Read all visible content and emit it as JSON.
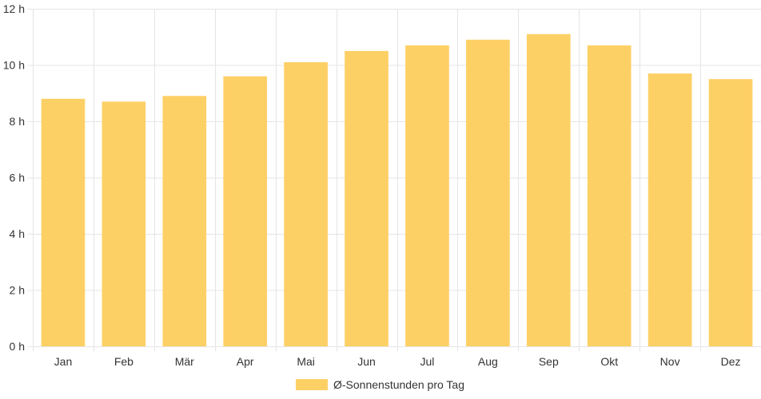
{
  "chart_data": {
    "type": "bar",
    "categories": [
      "Jan",
      "Feb",
      "Mär",
      "Apr",
      "Mai",
      "Jun",
      "Jul",
      "Aug",
      "Sep",
      "Okt",
      "Nov",
      "Dez"
    ],
    "series": [
      {
        "name": "Ø-Sonnenstunden pro Tag",
        "values": [
          8.8,
          8.7,
          8.9,
          9.6,
          10.1,
          10.5,
          10.7,
          10.9,
          11.1,
          10.7,
          9.7,
          9.5
        ],
        "color": "#fdd066"
      }
    ],
    "ylim": [
      0,
      12
    ],
    "y_ticks": [
      0,
      2,
      4,
      6,
      8,
      10,
      12
    ],
    "y_unit": "h",
    "grid": true,
    "legend": "bottom-center"
  },
  "colors": {
    "bar": "#fdd066",
    "grid": "#e5e5e5",
    "axis_text": "#333333"
  }
}
